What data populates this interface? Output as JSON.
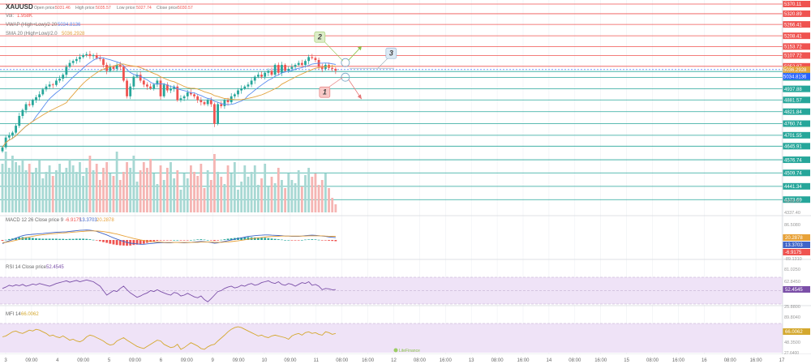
{
  "header": {
    "symbol": "XAUUSD",
    "open_label": "Open price:",
    "open_value": "5031.46",
    "high_label": "High price:",
    "high_value": "5035.57",
    "low_label": "Low price:",
    "low_value": "5027.74",
    "close_label": "Close price:",
    "close_value": "5030.57",
    "volume_label": "Vol:",
    "volume_value": "1.958K",
    "vwap_label": "VWAP (High+Low)/2 20",
    "vwap_value": "5034.8136",
    "sma_label": "SMA 20 (High+Low)/2.0",
    "sma_value": "5036.2928"
  },
  "macd_legend": {
    "label": "MACD 12 26 Close price 9",
    "v1": "-6.9175",
    "v2": "13.3703",
    "v3": "20.2878"
  },
  "rsi_legend": {
    "label": "RSI 14 Close price",
    "value": "52.4545"
  },
  "mfi_legend": {
    "label": "MFI 14",
    "value": "66.0062"
  },
  "colors": {
    "up": "#26a69a",
    "down": "#ef5350",
    "grid": "#eef1f4",
    "vwap": "#5b8def",
    "sma": "#e2a23c",
    "macd_line": "#3f64c8",
    "macd_signal": "#e8a238",
    "rsi": "#7b4fa8",
    "mfi": "#d4a82e",
    "band": "#efe3f7",
    "current_price": "#2962ff"
  },
  "price_levels": {
    "red": [
      "5370.11",
      "5320.89",
      "5266.41",
      "5208.41",
      "5153.72",
      "5107.72",
      "5052.87"
    ],
    "green": [
      "5026.51",
      "4996.26",
      "4937.88",
      "4881.57",
      "4821.84",
      "4760.74",
      "4701.55",
      "4645.91",
      "4576.74",
      "4509.74",
      "4441.34",
      "4373.69"
    ]
  },
  "price_tags": {
    "current": "5036.2928",
    "vwap": "5034.8136"
  },
  "price_axis_extra": [
    "4398.85",
    "4337.40"
  ],
  "macd_axis": {
    "top": "86.5080",
    "bottom": "-89.1310",
    "signal_tag": "20.2878",
    "macd_tag": "13.3703",
    "hist_tag": "-6.9175"
  },
  "rsi_axis": {
    "top": "81.0250",
    "mid": "62.8450",
    "low": "25.8800",
    "tag": "52.4545"
  },
  "mfi_axis": {
    "top": "89.8040",
    "mid": "48.3500",
    "low": "27.6400",
    "tag": "66.0062"
  },
  "time_axis": [
    "3",
    "09:00",
    "4",
    "09:00",
    "5",
    "09:00",
    "6",
    "09:00",
    "9",
    "09:00",
    "10",
    "09:00",
    "11",
    "08:00",
    "16:00",
    "12",
    "08:00",
    "16:00",
    "13",
    "08:00",
    "16:00",
    "14",
    "08:00",
    "16:00",
    "15",
    "08:00",
    "16:00",
    "16",
    "08:00",
    "16:00",
    "17"
  ],
  "annotations": {
    "marker_1": "1",
    "marker_2": "2",
    "marker_3": "3"
  },
  "watermark": "LiteFinance",
  "chart_data": {
    "type": "candlestick",
    "symbol": "XAUUSD",
    "price_axis": {
      "min": 4337.4,
      "max": 5370.11
    },
    "close": [
      4640,
      4690,
      4700,
      4715,
      4750,
      4800,
      4830,
      4860,
      4855,
      4880,
      4895,
      4910,
      4935,
      4950,
      4960,
      4958,
      4980,
      4990,
      5010,
      5050,
      5070,
      5080,
      5090,
      5100,
      5110,
      5115,
      5105,
      5110,
      5095,
      5090,
      5060,
      5030,
      5050,
      5040,
      5060,
      5050,
      4980,
      4900,
      4950,
      5000,
      5010,
      4980,
      4960,
      4950,
      4940,
      4960,
      4980,
      4900,
      4960,
      4930,
      4940,
      4950,
      4880,
      4890,
      4900,
      4920,
      4910,
      4900,
      4880,
      4870,
      4860,
      4880,
      4860,
      4760,
      4860,
      4850,
      4880,
      4870,
      4900,
      4910,
      4930,
      4940,
      4950,
      4960,
      4980,
      5000,
      5010,
      5000,
      5020,
      5030,
      5010,
      5060,
      5020,
      5060,
      5030,
      5040,
      5050,
      5060,
      5070,
      5060,
      5080,
      5100,
      5095,
      5085,
      5050,
      5040,
      5060,
      5045,
      5040,
      5030.57
    ],
    "volume": [
      60,
      75,
      55,
      70,
      62,
      58,
      66,
      52,
      60,
      48,
      55,
      64,
      42,
      50,
      58,
      45,
      52,
      60,
      48,
      55,
      65,
      58,
      50,
      62,
      45,
      55,
      70,
      52,
      60,
      40,
      55,
      62,
      48,
      45,
      75,
      40,
      50,
      62,
      55,
      70,
      38,
      52,
      62,
      55,
      66,
      48,
      35,
      58,
      40,
      55,
      62,
      42,
      52,
      28,
      48,
      42,
      58,
      50,
      45,
      60,
      30,
      52,
      40,
      72,
      50,
      44,
      35,
      58,
      48,
      62,
      28,
      38,
      58,
      44,
      50,
      58,
      34,
      42,
      60,
      32,
      44,
      36,
      55,
      40,
      30,
      48,
      40,
      36,
      52,
      32,
      46,
      55,
      44,
      48,
      34,
      40,
      48,
      30,
      18,
      10
    ],
    "macd": [
      -20,
      -12,
      -5,
      2,
      10,
      18,
      24,
      28,
      30,
      32,
      33,
      35,
      36,
      38,
      40,
      42,
      43,
      44,
      45,
      46,
      48,
      50,
      52,
      54,
      55,
      56,
      55,
      52,
      48,
      42,
      35,
      28,
      20,
      12,
      5,
      -2,
      -8,
      -14,
      -18,
      -20,
      -22,
      -24,
      -24,
      -22,
      -20,
      -18,
      -16,
      -15,
      -15,
      -16,
      -16,
      -14,
      -14,
      -15,
      -16,
      -15,
      -14,
      -12,
      -10,
      -8,
      -10,
      -12,
      -14,
      -18,
      -16,
      -12,
      -8,
      -4,
      0,
      4,
      8,
      12,
      16,
      20,
      22,
      24,
      26,
      27,
      28,
      28,
      27,
      26,
      25,
      24,
      22,
      22,
      20,
      20,
      20,
      22,
      24,
      26,
      27,
      26,
      24,
      22,
      20,
      17,
      15,
      13.37
    ],
    "macd_signal": [
      -15,
      -13,
      -10,
      -6,
      -2,
      3,
      8,
      13,
      17,
      21,
      24,
      27,
      29,
      31,
      33,
      35,
      36,
      38,
      39,
      41,
      42,
      44,
      45,
      47,
      48,
      50,
      51,
      51,
      50,
      49,
      47,
      44,
      41,
      37,
      33,
      28,
      23,
      18,
      13,
      8,
      4,
      0,
      -3,
      -6,
      -8,
      -10,
      -11,
      -12,
      -13,
      -14,
      -14,
      -14,
      -14,
      -14,
      -14,
      -14,
      -14,
      -13,
      -13,
      -12,
      -12,
      -12,
      -12,
      -13,
      -13,
      -13,
      -12,
      -11,
      -9,
      -7,
      -5,
      -2,
      1,
      4,
      7,
      10,
      12,
      14,
      16,
      18,
      19,
      20,
      21,
      22,
      22,
      22,
      22,
      22,
      22,
      22,
      22,
      23,
      23,
      23,
      23,
      23,
      22,
      21,
      20.5,
      20.29
    ],
    "rsi": [
      55,
      58,
      62,
      60,
      63,
      61,
      64,
      60,
      62,
      65,
      63,
      66,
      64,
      62,
      60,
      63,
      66,
      68,
      70,
      72,
      69,
      71,
      73,
      70,
      72,
      74,
      72,
      70,
      65,
      60,
      50,
      40,
      45,
      50,
      48,
      55,
      60,
      52,
      45,
      40,
      35,
      38,
      42,
      45,
      50,
      48,
      52,
      48,
      45,
      42,
      40,
      46,
      44,
      38,
      40,
      44,
      40,
      36,
      34,
      38,
      30,
      25,
      32,
      40,
      48,
      50,
      55,
      58,
      60,
      56,
      58,
      62,
      60,
      64,
      66,
      62,
      64,
      68,
      70,
      72,
      68,
      66,
      70,
      64,
      62,
      66,
      64,
      60,
      64,
      68,
      66,
      70,
      62,
      64,
      60,
      52,
      55,
      54,
      52,
      52.45
    ],
    "mfi": [
      58,
      60,
      65,
      70,
      72,
      68,
      66,
      70,
      74,
      72,
      76,
      74,
      70,
      66,
      60,
      62,
      58,
      56,
      60,
      55,
      50,
      52,
      48,
      46,
      50,
      58,
      62,
      60,
      56,
      52,
      48,
      42,
      38,
      40,
      48,
      52,
      56,
      50,
      45,
      40,
      35,
      32,
      30,
      35,
      40,
      45,
      50,
      48,
      40,
      36,
      32,
      34,
      40,
      28,
      32,
      38,
      44,
      40,
      36,
      30,
      28,
      34,
      38,
      40,
      48,
      55,
      62,
      70,
      76,
      80,
      82,
      80,
      76,
      72,
      68,
      64,
      60,
      62,
      58,
      56,
      60,
      62,
      60,
      58,
      56,
      52,
      60,
      64,
      66,
      62,
      68,
      70,
      66,
      68,
      64,
      62,
      70,
      68,
      64,
      66
    ]
  }
}
